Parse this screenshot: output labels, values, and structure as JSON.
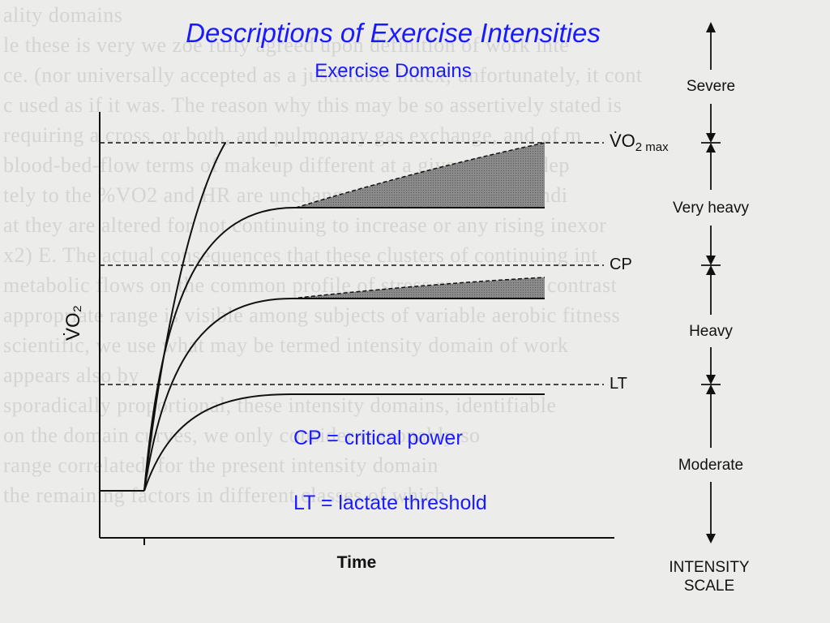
{
  "slide": {
    "title": "Descriptions of Exercise Intensities",
    "subtitle": "Exercise Domains",
    "note_cp": "CP = critical power",
    "note_lt": "LT = lactate threshold"
  },
  "figure": {
    "y_axis_label": "V̇O₂",
    "x_axis_label": "Time",
    "thresholds": [
      {
        "label_main": "V̇O",
        "label_sub": "2 max"
      },
      {
        "label_main": "CP"
      },
      {
        "label_main": "LT"
      }
    ],
    "domains": [
      "Severe",
      "Very heavy",
      "Heavy",
      "Moderate"
    ],
    "scale_label_line1": "INTENSITY",
    "scale_label_line2": "SCALE"
  },
  "background_text": [
    "ality domains",
    "le these is very we zoe fully agreed upon definition of work inte",
    "ce. (nor universally accepted as a justifiable index; unfortunately, it cont",
    "c used as if it was. The reason why this may be so assertively stated is",
    "requiring a cross, or both, and pulmonary gas exchange, and of m",
    "blood-bed-flow terms of makeup different at a given %VO2 dep",
    "tely to the %VO2 and HR are unchanged from the control condi",
    "at they are altered for not continuing to increase or any rising inexor",
    "x2) E. The actual consequences that these clusters of continuing int",
    "metabolic flows on the common profile of stress response, in contrast",
    "appropriate range is visible among subjects of variable aerobic fitness",
    "scientific, we use what may be termed intensity domain of work",
    "appears also by",
    "",
    "sporadically proportional, these intensity domains, identifiable",
    "on the domain curves, we only consider reasonably so",
    "range correlated, for the present intensity domain",
    "",
    "the remaining factors in different classes of which"
  ],
  "colors": {
    "accent": "#1a1aff",
    "ink": "#111111",
    "shade": "#7a7a7a"
  }
}
